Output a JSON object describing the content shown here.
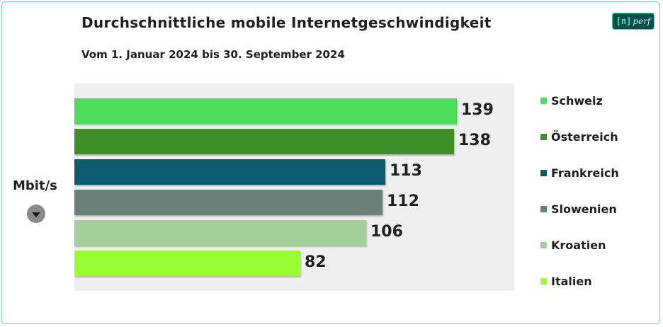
{
  "header": {
    "title": "Durchschnittliche  mobile  Internetgeschwindigkeit",
    "subtitle": "Vom 1. Januar 2024 bis 30. September 2024"
  },
  "logo": {
    "mark": "[n]",
    "word": "perf"
  },
  "unit": {
    "label": "Mbit/s",
    "icon": "dropdown-triangle-icon"
  },
  "chart_data": {
    "type": "bar",
    "orientation": "horizontal",
    "title": "Durchschnittliche  mobile  Internetgeschwindigkeit",
    "subtitle": "Vom 1. Januar 2024 bis 30. September 2024",
    "unit": "Mbit/s",
    "categories": [
      "Schweiz",
      "Österreich",
      "Frankreich",
      "Slowenien",
      "Kroatien",
      "Italien"
    ],
    "values": [
      139,
      138,
      113,
      112,
      106,
      82
    ],
    "colors": [
      "#4ddd5d",
      "#3f8f28",
      "#0c5a6e",
      "#6b7f79",
      "#a5cf9a",
      "#99ff33"
    ],
    "xlim": [
      0,
      160
    ],
    "grid": false,
    "legend_position": "right"
  }
}
